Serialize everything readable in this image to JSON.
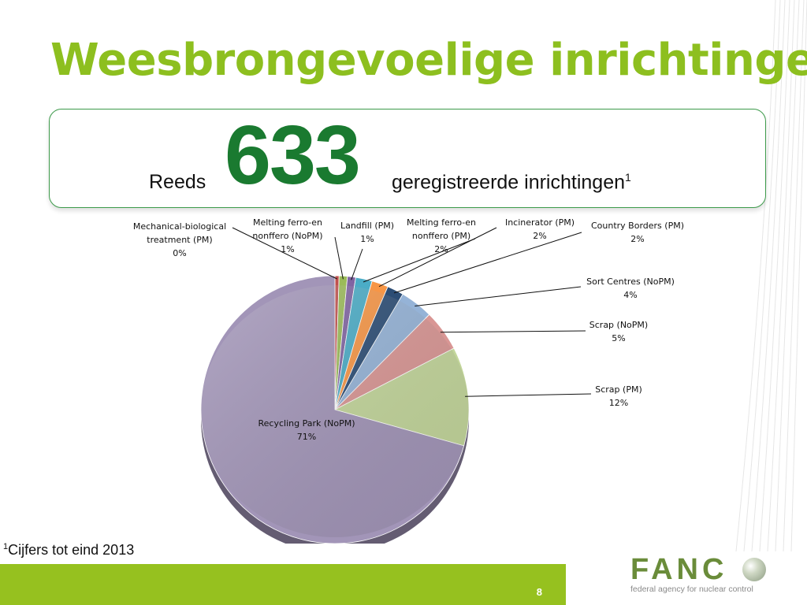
{
  "slide": {
    "title": "Weesbrongevoelige inrichtingen",
    "page_number": "8"
  },
  "banner": {
    "prefix": "Reeds",
    "number": "633",
    "suffix": "geregistreerde inrichtingen",
    "footnote_ref": "1"
  },
  "footnote": {
    "ref": "1",
    "text": "Cijfers tot eind 2013"
  },
  "logo": {
    "name": "FANC",
    "tagline": "federal agency for nuclear control"
  },
  "colors": {
    "title": "#8dbf1f",
    "number": "#1a7a30",
    "footer_bar": "#96c11f"
  },
  "chart_data": {
    "type": "pie",
    "categories": [
      "Mechanical-biological treatment (PM)",
      "Melting ferro-en nonffero (NoPM)",
      "Landfill (PM)",
      "Melting ferro-en nonffero (PM)",
      "Incinerator (PM)",
      "Country Borders (PM)",
      "Sort Centres (NoPM)",
      "Scrap (NoPM)",
      "Scrap (PM)",
      "Recycling Park (NoPM)"
    ],
    "values": [
      0.5,
      1,
      1,
      2,
      2,
      2,
      4,
      5,
      12,
      71
    ],
    "labels": [
      "0%",
      "1%",
      "1%",
      "2%",
      "2%",
      "2%",
      "4%",
      "5%",
      "12%",
      "71%"
    ],
    "colors": [
      "#c0504d",
      "#9bbb59",
      "#8064a2",
      "#4bacc6",
      "#f79646",
      "#2c4d75",
      "#95b3d7",
      "#d99694",
      "#c3d69b",
      "#a295b8"
    ]
  }
}
